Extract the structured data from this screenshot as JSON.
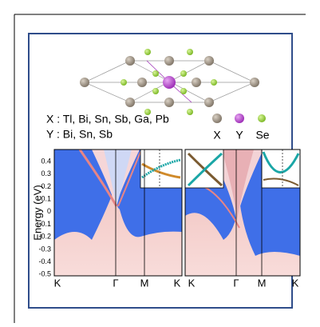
{
  "composition": {
    "x_line": "X : Tl, Bi, Sn, Sb, Ga, Pb",
    "y_line": "Y : Bi, Sn, Sb"
  },
  "legend": [
    {
      "label": "X"
    },
    {
      "label": "Y"
    },
    {
      "label": "Se"
    }
  ],
  "band_plot": {
    "y_axis_label": "Energy (eV)",
    "yticks": [
      "0.4",
      "0.3",
      "0.2",
      "0.1",
      "0",
      "-0.1",
      "-0.2",
      "-0.3",
      "-0.4",
      "-0.5"
    ],
    "left_panel_xlabels": [
      "K",
      "Γ",
      "M",
      "K"
    ],
    "right_panel_xlabels": [
      "K",
      "Γ",
      "M",
      "K"
    ]
  }
}
